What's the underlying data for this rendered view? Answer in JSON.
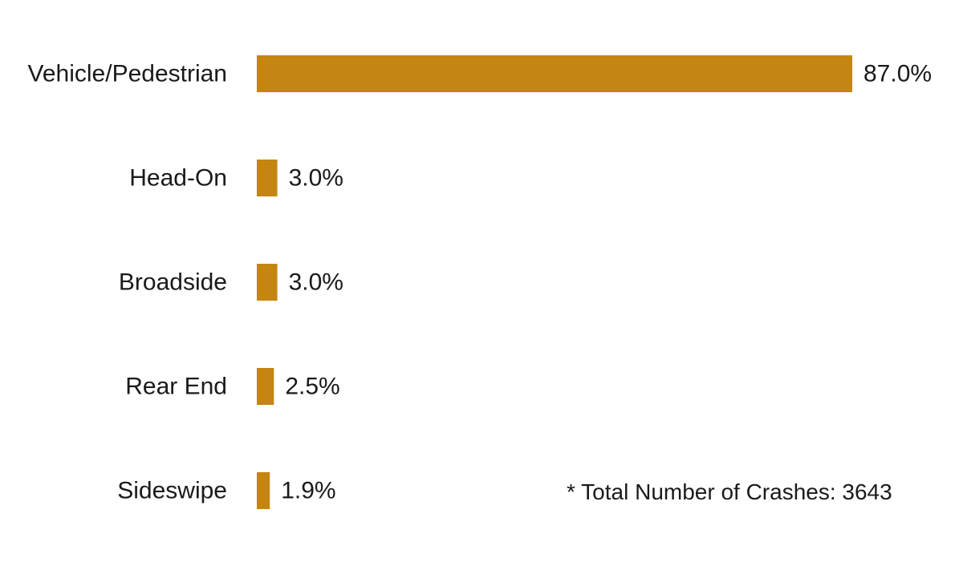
{
  "chart_data": {
    "type": "bar",
    "orientation": "horizontal",
    "categories": [
      "Vehicle/Pedestrian",
      "Head-On",
      "Broadside",
      "Rear End",
      "Sideswipe"
    ],
    "values": [
      87.0,
      3.0,
      3.0,
      2.5,
      1.9
    ],
    "value_labels": [
      "87.0%",
      "3.0%",
      "3.0%",
      "2.5%",
      "1.9%"
    ],
    "title": "",
    "xlabel": "",
    "ylabel": "",
    "xlim": [
      0,
      87.0
    ],
    "grid": false,
    "bar_color": "#C48512",
    "annotation": "* Total Number of Crashes: 3643"
  }
}
